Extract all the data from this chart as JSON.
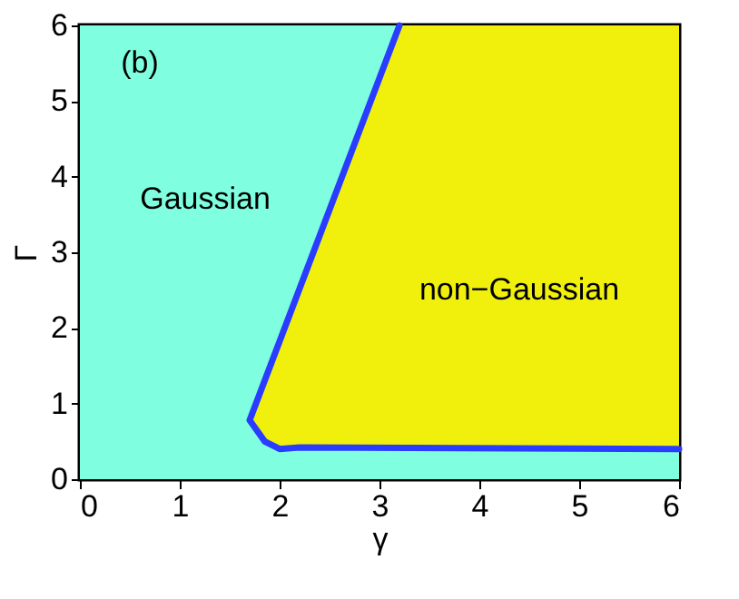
{
  "chart_data": {
    "type": "line",
    "xlabel": "γ",
    "ylabel": "Γ",
    "xlim": [
      0,
      6
    ],
    "ylim": [
      0,
      6
    ],
    "xticks": [
      0,
      1,
      2,
      3,
      4,
      5,
      6
    ],
    "yticks": [
      0,
      1,
      2,
      3,
      4,
      5,
      6
    ],
    "grid": false,
    "series": [
      {
        "type": "area",
        "color": "#7fffdf",
        "x": [
          0,
          6
        ],
        "values": [
          6,
          6
        ]
      },
      {
        "type": "area",
        "color": "#f0f00c",
        "x": [
          1.7,
          1.85,
          2.0,
          2.2,
          3.2,
          6
        ],
        "values": [
          0.78,
          1.3,
          1.82,
          2.52,
          6,
          6
        ]
      },
      {
        "type": "area",
        "color": "#7fffdf",
        "x": [
          1.7,
          1.85,
          2.0,
          2.2,
          3.2,
          6
        ],
        "values": [
          0.78,
          0.5,
          0.4,
          0.42,
          0.4,
          0.4
        ]
      },
      {
        "color": "#2a3cff",
        "x": [
          3.2,
          1.7,
          1.85,
          2.0,
          2.2,
          6
        ],
        "values": [
          6,
          0.78,
          0.5,
          0.4,
          0.42,
          0.4
        ]
      }
    ],
    "annotations": [
      "(b)",
      "Gaussian",
      "non−Gaussian"
    ]
  }
}
